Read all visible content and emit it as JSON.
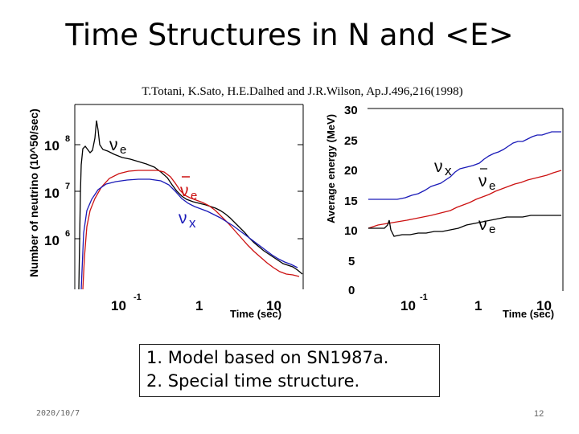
{
  "slide": {
    "title": "Time Structures in N and <E>",
    "citation": "T.Totani, K.Sato, H.E.Dalhed and J.R.Wilson, Ap.J.496,216(1998)",
    "date": "2020/10/7",
    "page_number": "12"
  },
  "points": [
    {
      "number": "1.",
      "text": "Model based on SN1987a."
    },
    {
      "number": "2.",
      "text": "Special time structure."
    }
  ],
  "left_panel": {
    "y_label": "Number of neutrino (10^50/sec)",
    "y_ticks": [
      "10",
      "10",
      "10"
    ],
    "y_tick_exponents": [
      "8",
      "7",
      "6"
    ],
    "x_ticks": [
      "10",
      "1",
      "10"
    ],
    "x_tick_exponent": "-1",
    "x_label": "Time (sec)",
    "curve_labels": [
      {
        "greek": "ν",
        "sub": "e"
      },
      {
        "greek": "ν",
        "sub": "e"
      },
      {
        "greek": "ν",
        "sub": "x"
      }
    ]
  },
  "right_panel": {
    "y_label": "Average energy (MeV)",
    "y_ticks": [
      "30",
      "25",
      "20",
      "15",
      "10",
      "5",
      "0"
    ],
    "x_ticks": [
      "10",
      "1",
      "10"
    ],
    "x_tick_exponent": "-1",
    "x_label": "Time (sec)",
    "curve_labels": [
      {
        "greek": "ν",
        "sub": "x"
      },
      {
        "greek": "ν",
        "sub": "e"
      },
      {
        "greek": "ν",
        "sub": "e"
      }
    ]
  },
  "colors": {
    "nu_e": "#000000",
    "nu_e_bar": "#cc1111",
    "nu_x": "#1a1ab8"
  }
}
